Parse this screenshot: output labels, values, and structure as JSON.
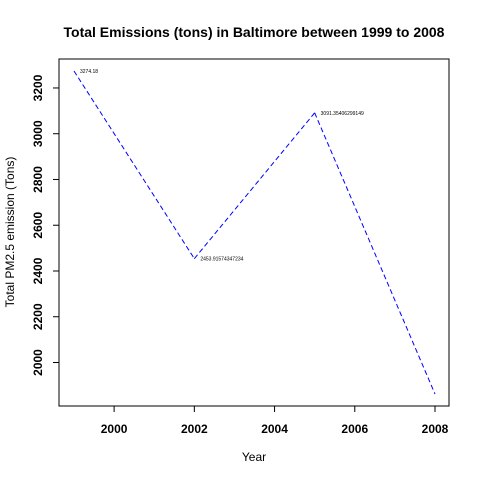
{
  "chart_data": {
    "type": "line",
    "title": "Total Emissions (tons) in Baltimore between 1999 to 2008",
    "xlabel": "Year",
    "ylabel": "Total PM2.5 emission (Tons)",
    "x": [
      1999,
      2002,
      2005,
      2008
    ],
    "y": [
      3274.18,
      2453.91574347234,
      3091.35406299149,
      1862.28
    ],
    "point_labels": [
      "3274.18",
      "2453.91574347234",
      "3091.35406299149",
      ""
    ],
    "xlim": [
      1999,
      2008
    ],
    "ylim": [
      1862.28,
      3274.18
    ],
    "x_ticks": [
      2000,
      2002,
      2004,
      2006,
      2008
    ],
    "y_ticks": [
      2000,
      2200,
      2400,
      2600,
      2800,
      3000,
      3200
    ],
    "series_color": "#0000ff",
    "line_style": "dashed",
    "grid": false
  }
}
